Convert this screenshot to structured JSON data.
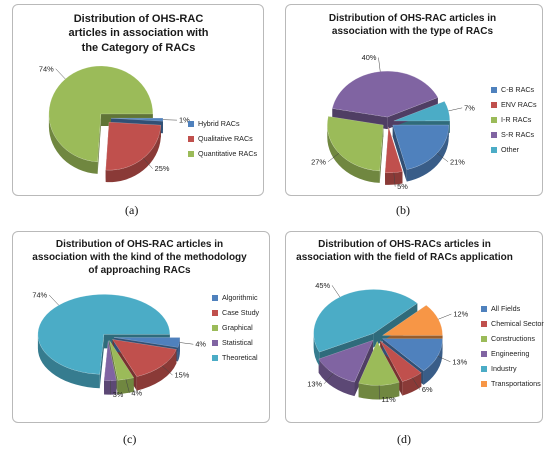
{
  "chart_data": [
    {
      "type": "pie",
      "title": "Distribution of OHS-RAC articles in association  with the Category of RACs",
      "caption": "(a)",
      "slices": [
        {
          "name": "Hybrid RACs",
          "value": 1,
          "label": "1%",
          "color": "#4f81bd"
        },
        {
          "name": "Qualitative RACs",
          "value": 25,
          "label": "25%",
          "color": "#c0504d"
        },
        {
          "name": "Quantitative RACs",
          "value": 74,
          "label": "74%",
          "color": "#9bbb59"
        }
      ],
      "legend": "right"
    },
    {
      "type": "pie",
      "title": "Distribution of OHS-RAC articles  in association with the type of RACs",
      "caption": "(b)",
      "slices": [
        {
          "name": "C-B RACs",
          "value": 21,
          "label": "21%",
          "color": "#4f81bd"
        },
        {
          "name": "ENV RACs",
          "value": 5,
          "label": "5%",
          "color": "#c0504d"
        },
        {
          "name": "I-R RACs",
          "value": 27,
          "label": "27%",
          "color": "#9bbb59"
        },
        {
          "name": "S-R RACs",
          "value": 40,
          "label": "40%",
          "color": "#8064a2"
        },
        {
          "name": "Other",
          "value": 7,
          "label": "7%",
          "color": "#4bacc6"
        }
      ],
      "legend": "right"
    },
    {
      "type": "pie",
      "title": "Distribution of OHS-RAC articles in association with the kind of the methodology of approaching RACs",
      "caption": "(c)",
      "slices": [
        {
          "name": "Algorithmic",
          "value": 4,
          "label": "4%",
          "color": "#4f81bd"
        },
        {
          "name": "Case Study",
          "value": 15,
          "label": "15%",
          "color": "#c0504d"
        },
        {
          "name": "Graphical",
          "value": 4,
          "label": "4%",
          "color": "#9bbb59"
        },
        {
          "name": "Statistical",
          "value": 3,
          "label": "3%",
          "color": "#8064a2"
        },
        {
          "name": "Theoretical",
          "value": 74,
          "label": "74%",
          "color": "#4bacc6"
        }
      ],
      "legend": "right"
    },
    {
      "type": "pie",
      "title": "Distribution of OHS-RACs articles in association with the field of RACs application",
      "caption": "(d)",
      "slices": [
        {
          "name": "All Fields",
          "value": 13,
          "label": "13%",
          "color": "#4f81bd"
        },
        {
          "name": "Chemical Sector",
          "value": 6,
          "label": "6%",
          "color": "#c0504d"
        },
        {
          "name": "Constructions",
          "value": 11,
          "label": "11%",
          "color": "#9bbb59"
        },
        {
          "name": "Engineering",
          "value": 13,
          "label": "13%",
          "color": "#8064a2"
        },
        {
          "name": "Industry",
          "value": 45,
          "label": "45%",
          "color": "#4bacc6"
        },
        {
          "name": "Transportations",
          "value": 12,
          "label": "12%",
          "color": "#f79646"
        }
      ],
      "legend": "right"
    }
  ]
}
